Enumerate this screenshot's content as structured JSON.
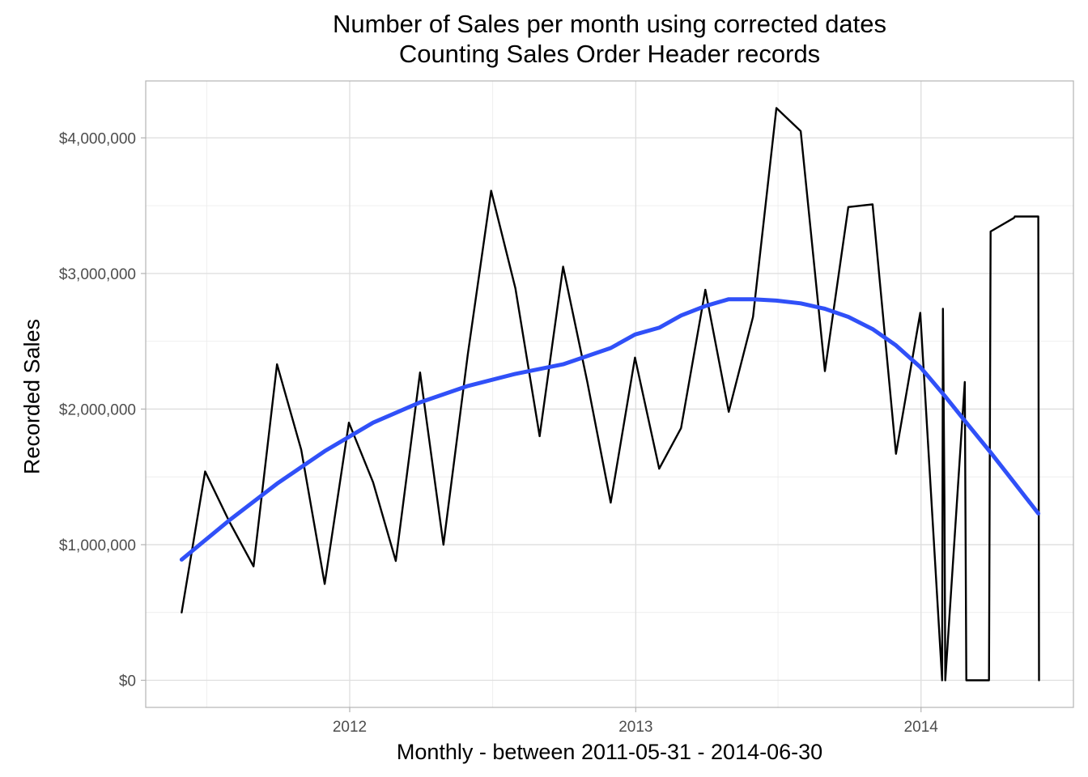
{
  "chart_data": {
    "type": "line",
    "title": "Number of Sales per month using corrected dates",
    "subtitle": "Counting Sales Order Header records",
    "xlabel": "Monthly - between  2011-05-31  -  2014-06-30",
    "ylabel": "Recorded Sales",
    "xlim": [
      "2011-04-15",
      "2014-07-15"
    ],
    "ylim": [
      -200000,
      4420000
    ],
    "x_ticks": [
      "2012-01-01",
      "2013-01-01",
      "2014-01-01"
    ],
    "x_tick_labels": [
      "2012",
      "2013",
      "2014"
    ],
    "y_ticks": [
      0,
      1000000,
      2000000,
      3000000,
      4000000
    ],
    "y_tick_labels": [
      "$0",
      "$1,000,000",
      "$2,000,000",
      "$3,000,000",
      "$4,000,000"
    ],
    "grid": true,
    "colors": {
      "raw": "#000000",
      "smooth": "#3050f8",
      "grid": "#ebebeb",
      "border": "#b3b3b3"
    },
    "series": [
      {
        "x": [
          "2011-05-31",
          "2011-06-30",
          "2011-07-31",
          "2011-08-31",
          "2011-09-30",
          "2011-10-31",
          "2011-11-30",
          "2011-12-31",
          "2012-01-31",
          "2012-02-29",
          "2012-03-31",
          "2012-04-30",
          "2012-05-31",
          "2012-06-30",
          "2012-07-31",
          "2012-08-31",
          "2012-09-30",
          "2012-10-31",
          "2012-11-30",
          "2012-12-31",
          "2013-01-31",
          "2013-02-28",
          "2013-03-31",
          "2013-04-30",
          "2013-05-31",
          "2013-06-30",
          "2013-07-31",
          "2013-08-31",
          "2013-09-30",
          "2013-10-31",
          "2013-11-30",
          "2013-12-31",
          "2014-01-28",
          "2014-01-29",
          "2014-01-31",
          "2014-02-01",
          "2014-02-26",
          "2014-02-28",
          "2014-03-29",
          "2014-03-31",
          "2014-04-30",
          "2014-05-01",
          "2014-05-31",
          "2014-06-01"
        ],
        "values": [
          500000,
          1540000,
          1170000,
          840000,
          2330000,
          1700000,
          710000,
          1900000,
          1460000,
          880000,
          2270000,
          1000000,
          2400000,
          3610000,
          2890000,
          1800000,
          3050000,
          2200000,
          1310000,
          2380000,
          1560000,
          1860000,
          2880000,
          1980000,
          2680000,
          4220000,
          4050000,
          2280000,
          3490000,
          3510000,
          1670000,
          2710000,
          0,
          2740000,
          1300000,
          0,
          2200000,
          0,
          0,
          3310000,
          3410000,
          3420000,
          3420000,
          0
        ]
      },
      {
        "x": [
          "2011-05-31",
          "2011-07-31",
          "2011-09-30",
          "2011-11-30",
          "2012-01-31",
          "2012-03-31",
          "2012-05-31",
          "2012-07-31",
          "2012-09-30",
          "2012-11-30",
          "2012-12-31",
          "2013-01-31",
          "2013-02-28",
          "2013-03-31",
          "2013-04-30",
          "2013-05-31",
          "2013-06-30",
          "2013-07-31",
          "2013-08-31",
          "2013-09-30",
          "2013-10-31",
          "2013-11-30",
          "2013-12-31",
          "2014-01-31",
          "2014-02-28",
          "2014-03-31",
          "2014-04-30",
          "2014-05-31"
        ],
        "values": [
          890000,
          1180000,
          1450000,
          1690000,
          1900000,
          2050000,
          2170000,
          2260000,
          2330000,
          2450000,
          2550000,
          2600000,
          2690000,
          2760000,
          2810000,
          2810000,
          2800000,
          2780000,
          2740000,
          2680000,
          2590000,
          2470000,
          2310000,
          2100000,
          1900000,
          1680000,
          1460000,
          1230000
        ]
      }
    ]
  }
}
